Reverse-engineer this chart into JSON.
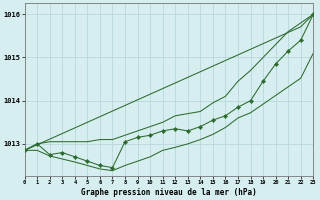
{
  "hours": [
    0,
    1,
    2,
    3,
    4,
    5,
    6,
    7,
    8,
    9,
    10,
    11,
    12,
    13,
    14,
    15,
    16,
    17,
    18,
    19,
    20,
    21,
    22,
    23
  ],
  "line_actual": [
    1012.85,
    1013.0,
    1012.75,
    1012.8,
    1012.7,
    1012.6,
    1012.5,
    1012.45,
    1013.05,
    1013.15,
    1013.2,
    1013.3,
    1013.35,
    1013.3,
    1013.4,
    1013.55,
    1013.65,
    1013.85,
    1014.0,
    1014.45,
    1014.85,
    1015.15,
    1015.4,
    1016.0
  ],
  "line_upper": [
    1012.85,
    1013.0,
    1013.05,
    1013.05,
    1013.05,
    1013.05,
    1013.1,
    1013.1,
    1013.2,
    1013.3,
    1013.4,
    1013.5,
    1013.65,
    1013.7,
    1013.75,
    1013.95,
    1014.1,
    1014.45,
    1014.7,
    1015.0,
    1015.3,
    1015.6,
    1015.8,
    1016.0
  ],
  "line_lower": [
    1012.85,
    1012.85,
    1012.72,
    1012.65,
    1012.58,
    1012.5,
    1012.42,
    1012.38,
    1012.5,
    1012.6,
    1012.7,
    1012.85,
    1012.92,
    1013.0,
    1013.1,
    1013.22,
    1013.38,
    1013.6,
    1013.72,
    1013.92,
    1014.12,
    1014.32,
    1014.52,
    1015.1
  ],
  "line_diag": [
    1012.85,
    1012.98,
    1013.11,
    1013.24,
    1013.37,
    1013.5,
    1013.63,
    1013.76,
    1013.89,
    1014.02,
    1014.15,
    1014.28,
    1014.41,
    1014.54,
    1014.67,
    1014.8,
    1014.93,
    1015.06,
    1015.19,
    1015.32,
    1015.45,
    1015.58,
    1015.71,
    1016.0
  ],
  "bg_color": "#d6eef0",
  "grid_color": "#b8d8dc",
  "line_color": "#2d6a2d",
  "xlabel": "Graphe pression niveau de la mer (hPa)",
  "ylim_min": 1012.25,
  "ylim_max": 1016.25,
  "yticks": [
    1013,
    1014,
    1015,
    1016
  ],
  "xlim_min": 0,
  "xlim_max": 23
}
